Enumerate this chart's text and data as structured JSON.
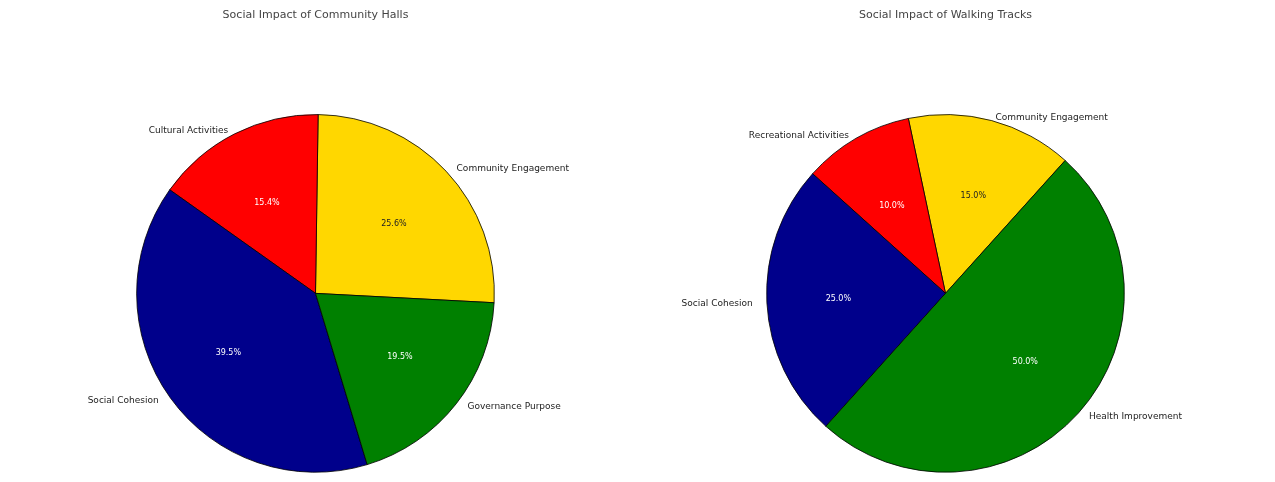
{
  "chart_data": [
    {
      "type": "pie",
      "title": "Social Impact of Community Halls",
      "categories": [
        "Community Engagement",
        "Cultural Activities",
        "Social Cohesion",
        "Governance Purpose"
      ],
      "values": [
        25.6,
        15.4,
        39.5,
        19.5
      ],
      "value_labels": [
        "25.6%",
        "15.4%",
        "39.5%",
        "19.5%"
      ],
      "colors": [
        "#ffd700",
        "#ff0000",
        "#00008b",
        "#008000"
      ]
    },
    {
      "type": "pie",
      "title": "Social Impact of Walking Tracks",
      "categories": [
        "Community Engagement",
        "Recreational Activities",
        "Social Cohesion",
        "Health Improvement"
      ],
      "values": [
        15.0,
        10.0,
        25.0,
        50.0
      ],
      "value_labels": [
        "15.0%",
        "10.0%",
        "25.0%",
        "50.0%"
      ],
      "colors": [
        "#ffd700",
        "#ff0000",
        "#00008b",
        "#008000"
      ]
    }
  ]
}
